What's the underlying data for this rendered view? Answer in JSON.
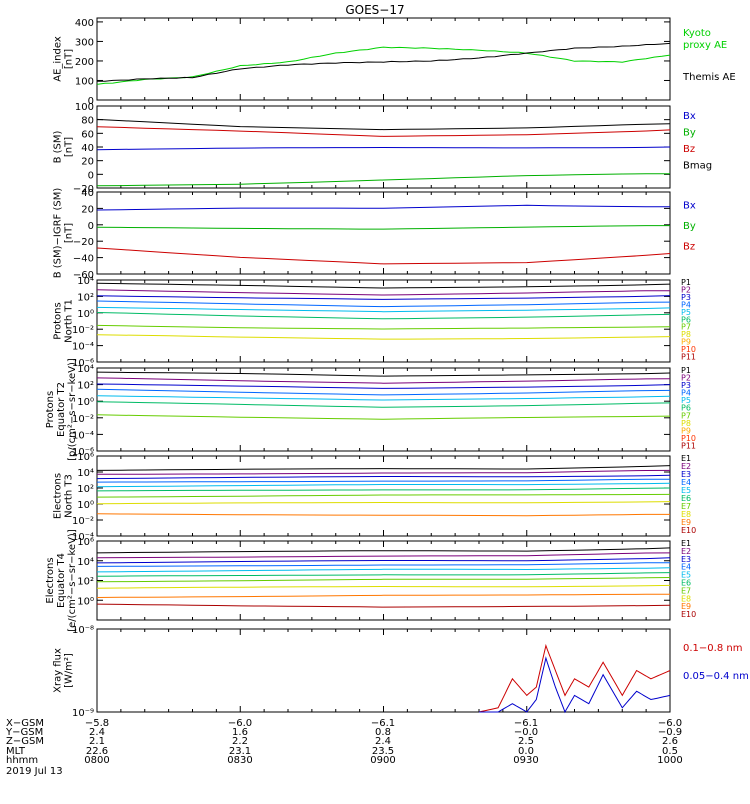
{
  "title": "GOES−17",
  "panels": [
    {
      "id": "ae",
      "ylabel": [
        "AE_index",
        "[nT]"
      ],
      "scale": "linear",
      "ylim": [
        0,
        420
      ],
      "yticks": [
        "0",
        "100",
        "200",
        "300",
        "400"
      ],
      "ytick_values": [
        0,
        100,
        200,
        300,
        400
      ],
      "legend": [
        {
          "label": "Kyoto",
          "color": "#00d000"
        },
        {
          "label": "proxy AE",
          "color": "#00d000"
        },
        {
          "label": "Themis AE",
          "color": "#000000"
        }
      ]
    },
    {
      "id": "bsm",
      "ylabel": [
        "B (SM)",
        "[nT]"
      ],
      "scale": "linear",
      "ylim": [
        -20,
        100
      ],
      "yticks": [
        "−20",
        "0",
        "20",
        "40",
        "60",
        "80",
        "100"
      ],
      "ytick_values": [
        -20,
        0,
        20,
        40,
        60,
        80,
        100
      ],
      "legend": [
        {
          "label": "Bx",
          "color": "#0000cc"
        },
        {
          "label": "By",
          "color": "#00b000"
        },
        {
          "label": "Bz",
          "color": "#cc0000"
        },
        {
          "label": "Bmag",
          "color": "#000000"
        }
      ]
    },
    {
      "id": "bigrf",
      "ylabel": [
        "B (SM)−IGRF (SM)",
        "[nT]"
      ],
      "scale": "linear",
      "ylim": [
        -60,
        40
      ],
      "yticks": [
        "−60",
        "−40",
        "−20",
        "0",
        "20",
        "40"
      ],
      "ytick_values": [
        -60,
        -40,
        -20,
        0,
        20,
        40
      ],
      "legend": [
        {
          "label": "Bx",
          "color": "#0000cc"
        },
        {
          "label": "By",
          "color": "#00b000"
        },
        {
          "label": "Bz",
          "color": "#cc0000"
        }
      ]
    },
    {
      "id": "pnorth",
      "ylabel": [
        "Protons",
        "North T1"
      ],
      "scale": "log",
      "ylim": [
        -6,
        4
      ],
      "yticks": [
        "10⁴",
        "10²",
        "10⁰",
        "10⁻²",
        "10⁻⁴",
        "10⁻⁶"
      ],
      "ytick_values": [
        4,
        2,
        0,
        -2,
        -4,
        -6
      ],
      "legend_compact": [
        "P1",
        "P2",
        "P3",
        "P4",
        "P5",
        "P6",
        "P7",
        "P8",
        "P9",
        "P10",
        "P11"
      ]
    },
    {
      "id": "peq",
      "ylabel": [
        "Protons",
        "Equator T2",
        "[p/(cm²−s−sr−keV)]"
      ],
      "scale": "log",
      "ylim": [
        -6,
        4
      ],
      "yticks": [
        "10⁴",
        "10²",
        "10⁰",
        "10⁻²",
        "10⁻⁴",
        "10⁻⁶"
      ],
      "ytick_values": [
        4,
        2,
        0,
        -2,
        -4,
        -6
      ],
      "legend_compact": [
        "P1",
        "P2",
        "P3",
        "P4",
        "P5",
        "P6",
        "P7",
        "P8",
        "P9",
        "P10",
        "P11"
      ]
    },
    {
      "id": "enorth",
      "ylabel": [
        "Electrons",
        "North T3"
      ],
      "scale": "log",
      "ylim": [
        -4,
        6
      ],
      "yticks": [
        "10⁶",
        "10⁴",
        "10²",
        "10⁰",
        "10⁻²",
        "10⁻⁴"
      ],
      "ytick_values": [
        6,
        4,
        2,
        0,
        -2,
        -4
      ],
      "legend_compact": [
        "E1",
        "E2",
        "E3",
        "E4",
        "E5",
        "E6",
        "E7",
        "E8",
        "E9",
        "E10"
      ]
    },
    {
      "id": "eeq",
      "ylabel": [
        "Electrons",
        "Equator T4",
        "[e/(cm²−s−sr−keV)]"
      ],
      "scale": "log",
      "ylim": [
        -2,
        6
      ],
      "yticks": [
        "10⁶",
        "10⁴",
        "10²",
        "10⁰"
      ],
      "ytick_values": [
        6,
        4,
        2,
        0
      ],
      "legend_compact": [
        "E1",
        "E2",
        "E3",
        "E4",
        "E5",
        "E6",
        "E7",
        "E8",
        "E9",
        "E10"
      ]
    },
    {
      "id": "xray",
      "ylabel": [
        "Xray flux",
        "[W/m²]"
      ],
      "scale": "log",
      "ylim": [
        -9,
        -8
      ],
      "yticks": [
        "10⁻⁸",
        "10⁻⁹"
      ],
      "ytick_values": [
        -8,
        -9
      ],
      "legend": [
        {
          "label": "0.1−0.8 nm",
          "color": "#cc0000"
        },
        {
          "label": "0.05−0.4 nm",
          "color": "#0000cc"
        }
      ]
    }
  ],
  "footer": {
    "rows": [
      {
        "label": "X−GSM",
        "values": [
          "−5.8",
          "−6.0",
          "−6.1",
          "−6.1",
          "−6.0"
        ]
      },
      {
        "label": "Y−GSM",
        "values": [
          "2.4",
          "1.6",
          "0.8",
          "−0.0",
          "−0.9"
        ]
      },
      {
        "label": "Z−GSM",
        "values": [
          "2.1",
          "2.2",
          "2.4",
          "2.5",
          "2.6"
        ]
      },
      {
        "label": "MLT",
        "values": [
          "22.6",
          "23.1",
          "23.5",
          "0.0",
          "0.5"
        ]
      },
      {
        "label": "hhmm",
        "values": [
          "0800",
          "0830",
          "0900",
          "0930",
          "1000"
        ]
      }
    ],
    "date": "2019 Jul 13"
  },
  "colors": {
    "protons": [
      "#000000",
      "#7a007a",
      "#0000cc",
      "#0066ff",
      "#00bbee",
      "#00bb66",
      "#66cc00",
      "#dddd00",
      "#ffaa00",
      "#ff3300",
      "#aa0000"
    ],
    "electrons": [
      "#000000",
      "#7a007a",
      "#0000cc",
      "#0066ff",
      "#00bbee",
      "#00bb66",
      "#66cc00",
      "#dddd00",
      "#ff7700",
      "#aa0000"
    ]
  },
  "chart_data": [
    {
      "type": "line",
      "panel": "ae",
      "x": [
        0,
        10,
        20,
        30,
        40,
        50,
        60,
        70,
        80,
        90,
        100,
        110,
        120
      ],
      "series": [
        {
          "name": "Kyoto proxy AE",
          "color": "#00d000",
          "values": [
            80,
            105,
            118,
            175,
            195,
            240,
            270,
            265,
            255,
            240,
            200,
            195,
            230
          ]
        },
        {
          "name": "Themis AE",
          "color": "#000000",
          "values": [
            95,
            108,
            115,
            160,
            180,
            190,
            195,
            200,
            215,
            240,
            265,
            275,
            290
          ]
        }
      ]
    },
    {
      "type": "line",
      "panel": "bsm",
      "x": [
        0,
        30,
        60,
        90,
        120
      ],
      "series": [
        {
          "name": "Bx",
          "color": "#0000cc",
          "values": [
            36,
            38,
            39,
            39,
            40
          ]
        },
        {
          "name": "By",
          "color": "#00b000",
          "values": [
            -17,
            -14,
            -8,
            -2,
            1
          ]
        },
        {
          "name": "Bz",
          "color": "#cc0000",
          "values": [
            70,
            63,
            55,
            58,
            65
          ]
        },
        {
          "name": "Bmag",
          "color": "#000000",
          "values": [
            80,
            70,
            66,
            68,
            74
          ]
        }
      ]
    },
    {
      "type": "line",
      "panel": "bigrf",
      "x": [
        0,
        30,
        60,
        90,
        120
      ],
      "series": [
        {
          "name": "Bx",
          "color": "#0000cc",
          "values": [
            18,
            20,
            20,
            24,
            22
          ]
        },
        {
          "name": "By",
          "color": "#00b000",
          "values": [
            -3,
            -4,
            -5,
            -3,
            -1
          ]
        },
        {
          "name": "Bz",
          "color": "#cc0000",
          "values": [
            -28,
            -40,
            -48,
            -46,
            -35
          ]
        }
      ]
    },
    {
      "type": "line",
      "panel": "pnorth",
      "x": [
        0,
        30,
        60,
        90,
        120
      ],
      "series": [
        {
          "name": "P1",
          "values": [
            3.6,
            3.3,
            3.0,
            3.2,
            3.5
          ]
        },
        {
          "name": "P2",
          "values": [
            2.8,
            2.5,
            2.2,
            2.4,
            2.7
          ]
        },
        {
          "name": "P3",
          "values": [
            2.1,
            1.8,
            1.6,
            1.8,
            2.1
          ]
        },
        {
          "name": "P4",
          "values": [
            1.4,
            1.1,
            0.8,
            1.0,
            1.3
          ]
        },
        {
          "name": "P5",
          "values": [
            0.7,
            0.4,
            0.1,
            0.3,
            0.6
          ]
        },
        {
          "name": "P6",
          "values": [
            0.0,
            -0.4,
            -0.7,
            -0.5,
            -0.2
          ]
        },
        {
          "name": "P7",
          "values": [
            -1.5,
            -1.8,
            -2.0,
            -1.9,
            -1.7
          ]
        },
        {
          "name": "P8",
          "values": [
            -2.7,
            -3.0,
            -3.2,
            -3.1,
            -2.9
          ]
        }
      ]
    },
    {
      "type": "line",
      "panel": "peq",
      "x": [
        0,
        30,
        60,
        90,
        120
      ],
      "series": [
        {
          "name": "P1",
          "values": [
            3.5,
            3.3,
            3.0,
            3.2,
            3.4
          ]
        },
        {
          "name": "P2",
          "values": [
            2.8,
            2.5,
            2.2,
            2.4,
            2.7
          ]
        },
        {
          "name": "P3",
          "values": [
            2.1,
            1.8,
            1.5,
            1.7,
            2.0
          ]
        },
        {
          "name": "P4",
          "values": [
            1.4,
            1.1,
            0.8,
            1.0,
            1.3
          ]
        },
        {
          "name": "P5",
          "values": [
            0.7,
            0.4,
            0.1,
            0.3,
            0.6
          ]
        },
        {
          "name": "P6",
          "values": [
            -0.1,
            -0.4,
            -0.7,
            -0.5,
            -0.2
          ]
        },
        {
          "name": "P7",
          "values": [
            -1.6,
            -1.9,
            -2.2,
            -2.0,
            -1.8
          ]
        }
      ]
    },
    {
      "type": "line",
      "panel": "enorth",
      "x": [
        0,
        30,
        60,
        90,
        120
      ],
      "series": [
        {
          "name": "E1",
          "values": [
            4.2,
            4.3,
            4.4,
            4.4,
            4.8
          ]
        },
        {
          "name": "E2",
          "values": [
            3.7,
            3.8,
            3.9,
            3.9,
            4.2
          ]
        },
        {
          "name": "E3",
          "values": [
            3.2,
            3.3,
            3.4,
            3.4,
            3.6
          ]
        },
        {
          "name": "E4",
          "values": [
            2.7,
            2.8,
            2.9,
            2.9,
            3.1
          ]
        },
        {
          "name": "E5",
          "values": [
            2.2,
            2.3,
            2.4,
            2.4,
            2.6
          ]
        },
        {
          "name": "E6",
          "values": [
            1.6,
            1.7,
            1.8,
            1.8,
            2.0
          ]
        },
        {
          "name": "E7",
          "values": [
            0.9,
            1.0,
            1.1,
            1.1,
            1.2
          ]
        },
        {
          "name": "E8",
          "values": [
            0.0,
            0.1,
            0.2,
            0.2,
            0.3
          ]
        },
        {
          "name": "E9",
          "values": [
            -1.2,
            -1.3,
            -1.4,
            -1.5,
            -1.3
          ]
        }
      ]
    },
    {
      "type": "line",
      "panel": "eeq",
      "x": [
        0,
        30,
        60,
        90,
        120
      ],
      "series": [
        {
          "name": "E1",
          "values": [
            4.8,
            4.9,
            5.0,
            5.0,
            5.3
          ]
        },
        {
          "name": "E2",
          "values": [
            4.3,
            4.4,
            4.5,
            4.5,
            4.8
          ]
        },
        {
          "name": "E3",
          "values": [
            3.8,
            3.9,
            4.0,
            4.0,
            4.3
          ]
        },
        {
          "name": "E4",
          "values": [
            3.4,
            3.5,
            3.6,
            3.6,
            3.8
          ]
        },
        {
          "name": "E5",
          "values": [
            2.9,
            3.0,
            3.1,
            3.1,
            3.3
          ]
        },
        {
          "name": "E6",
          "values": [
            2.4,
            2.5,
            2.6,
            2.6,
            2.8
          ]
        },
        {
          "name": "E7",
          "values": [
            1.9,
            2.0,
            2.1,
            2.1,
            2.3
          ]
        },
        {
          "name": "E8",
          "values": [
            1.2,
            1.3,
            1.4,
            1.4,
            1.5
          ]
        },
        {
          "name": "E9",
          "values": [
            0.3,
            0.4,
            0.5,
            0.5,
            0.6
          ]
        },
        {
          "name": "E10",
          "values": [
            -0.4,
            -0.6,
            -0.7,
            -0.6,
            -0.5
          ]
        }
      ]
    },
    {
      "type": "line",
      "panel": "xray",
      "x": [
        80,
        84,
        87,
        90,
        92,
        94,
        96,
        98,
        100,
        103,
        106,
        110,
        113,
        116,
        120
      ],
      "series": [
        {
          "name": "0.1−0.8 nm",
          "color": "#cc0000",
          "values": [
            -9.0,
            -8.95,
            -8.6,
            -8.8,
            -8.7,
            -8.2,
            -8.5,
            -8.8,
            -8.6,
            -8.7,
            -8.4,
            -8.8,
            -8.5,
            -8.6,
            -8.5
          ]
        },
        {
          "name": "0.05−0.4 nm",
          "color": "#0000cc",
          "values": [
            -9.0,
            -9.0,
            -8.9,
            -9.0,
            -8.85,
            -8.35,
            -8.7,
            -9.0,
            -8.8,
            -8.9,
            -8.55,
            -8.95,
            -8.75,
            -8.85,
            -8.8
          ]
        }
      ]
    }
  ]
}
